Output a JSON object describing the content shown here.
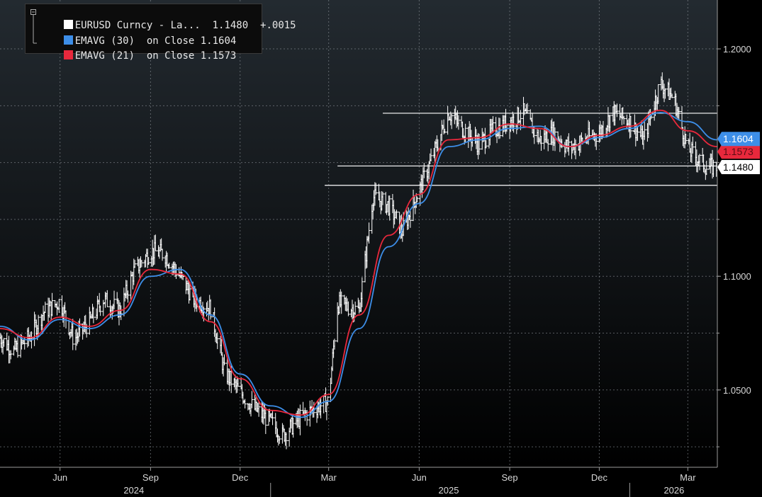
{
  "legend": {
    "main": {
      "label": "EURUSD Curncy - La...",
      "value": "1.1480",
      "change": "+.0015",
      "color": "#ffffff"
    },
    "ema30": {
      "label": "EMAVG (30)",
      "on": "on Close",
      "value": "1.1604",
      "color": "#3d8ee8"
    },
    "ema21": {
      "label": "EMAVG (21)",
      "on": "on Close",
      "value": "1.1573",
      "color": "#e8283c"
    }
  },
  "badges": {
    "ema30": "1.1604",
    "ema21": "1.1573",
    "last": "1.1480"
  },
  "chart_data": {
    "type": "line",
    "title": "",
    "xlabel": "",
    "ylabel": "",
    "ylim": [
      1.016,
      1.2215
    ],
    "xlim": [
      "2024-04-01",
      "2026-03-31"
    ],
    "y_ticks": [
      "1.0500",
      "1.1000",
      "1.2000"
    ],
    "x_month_ticks": [
      {
        "date": "2024-06-01",
        "label": "Jun"
      },
      {
        "date": "2024-09-01",
        "label": "Sep"
      },
      {
        "date": "2024-12-01",
        "label": "Dec"
      },
      {
        "date": "2025-03-01",
        "label": "Mar"
      },
      {
        "date": "2025-06-01",
        "label": "Jun"
      },
      {
        "date": "2025-09-01",
        "label": "Sep"
      },
      {
        "date": "2025-12-01",
        "label": "Dec"
      },
      {
        "date": "2026-03-01",
        "label": "Mar"
      }
    ],
    "x_year_labels": [
      {
        "date": "2024-08-15",
        "label": "2024"
      },
      {
        "date": "2025-07-01",
        "label": "2025"
      },
      {
        "date": "2026-02-15",
        "label": "2026"
      }
    ],
    "grid": true,
    "legend_position": "top-left",
    "series": [
      {
        "name": "EURUSD Curncy - La...",
        "style": "ohlc-bars",
        "color": "#ffffff",
        "x": [
          "2024-04-01",
          "2024-04-15",
          "2024-05-01",
          "2024-05-15",
          "2024-06-01",
          "2024-06-15",
          "2024-07-01",
          "2024-07-15",
          "2024-08-01",
          "2024-08-15",
          "2024-09-01",
          "2024-09-15",
          "2024-10-01",
          "2024-10-15",
          "2024-11-01",
          "2024-11-15",
          "2024-12-01",
          "2024-12-15",
          "2025-01-01",
          "2025-01-13",
          "2025-02-01",
          "2025-02-15",
          "2025-03-01",
          "2025-03-10",
          "2025-04-01",
          "2025-04-15",
          "2025-05-01",
          "2025-05-15",
          "2025-06-01",
          "2025-06-15",
          "2025-07-01",
          "2025-07-15",
          "2025-08-01",
          "2025-08-15",
          "2025-09-01",
          "2025-09-15",
          "2025-10-01",
          "2025-10-15",
          "2025-11-01",
          "2025-11-15",
          "2025-12-01",
          "2025-12-15",
          "2026-01-01",
          "2026-01-15",
          "2026-02-01",
          "2026-02-15",
          "2026-03-01",
          "2026-03-20"
        ],
        "y": [
          1.073,
          1.067,
          1.073,
          1.084,
          1.089,
          1.072,
          1.08,
          1.09,
          1.085,
          1.102,
          1.111,
          1.11,
          1.1,
          1.09,
          1.086,
          1.058,
          1.049,
          1.042,
          1.036,
          1.03,
          1.038,
          1.042,
          1.045,
          1.088,
          1.085,
          1.135,
          1.131,
          1.12,
          1.138,
          1.153,
          1.172,
          1.165,
          1.158,
          1.164,
          1.168,
          1.172,
          1.16,
          1.163,
          1.156,
          1.16,
          1.163,
          1.172,
          1.168,
          1.16,
          1.185,
          1.178,
          1.156,
          1.148
        ]
      },
      {
        "name": "EMAVG (30) on Close",
        "color": "#3d8ee8",
        "x": [
          "2024-04-01",
          "2024-05-01",
          "2024-06-01",
          "2024-07-01",
          "2024-08-01",
          "2024-09-01",
          "2024-10-01",
          "2024-11-01",
          "2024-12-01",
          "2025-01-01",
          "2025-02-01",
          "2025-03-01",
          "2025-04-01",
          "2025-05-01",
          "2025-06-01",
          "2025-07-01",
          "2025-08-01",
          "2025-09-01",
          "2025-10-01",
          "2025-11-01",
          "2025-12-01",
          "2026-01-01",
          "2026-02-01",
          "2026-03-01",
          "2026-03-31"
        ],
        "y": [
          1.078,
          1.072,
          1.081,
          1.077,
          1.083,
          1.1,
          1.103,
          1.083,
          1.057,
          1.043,
          1.038,
          1.045,
          1.077,
          1.113,
          1.132,
          1.157,
          1.16,
          1.165,
          1.166,
          1.157,
          1.161,
          1.165,
          1.172,
          1.168,
          1.16
        ]
      },
      {
        "name": "EMAVG (21) on Close",
        "color": "#e8283c",
        "x": [
          "2024-04-01",
          "2024-05-01",
          "2024-06-01",
          "2024-07-01",
          "2024-08-01",
          "2024-09-01",
          "2024-10-01",
          "2024-11-01",
          "2024-12-01",
          "2025-01-01",
          "2025-02-01",
          "2025-03-01",
          "2025-04-01",
          "2025-05-01",
          "2025-06-01",
          "2025-07-01",
          "2025-08-01",
          "2025-09-01",
          "2025-10-01",
          "2025-11-01",
          "2025-12-01",
          "2026-01-01",
          "2026-02-01",
          "2026-03-01",
          "2026-03-31"
        ],
        "y": [
          1.077,
          1.073,
          1.082,
          1.078,
          1.085,
          1.103,
          1.101,
          1.08,
          1.055,
          1.041,
          1.039,
          1.048,
          1.083,
          1.118,
          1.136,
          1.16,
          1.161,
          1.167,
          1.165,
          1.157,
          1.162,
          1.166,
          1.173,
          1.164,
          1.157
        ]
      }
    ],
    "horizontal_lines": [
      {
        "y": 1.1717,
        "from": "2025-04-25",
        "to": "2026-03-31",
        "color": "#ffffff"
      },
      {
        "y": 1.1485,
        "from": "2025-03-10",
        "to": "2026-03-31",
        "color": "#ffffff"
      },
      {
        "y": 1.14,
        "from": "2025-02-25",
        "to": "2026-03-31",
        "color": "#ffffff"
      }
    ]
  }
}
